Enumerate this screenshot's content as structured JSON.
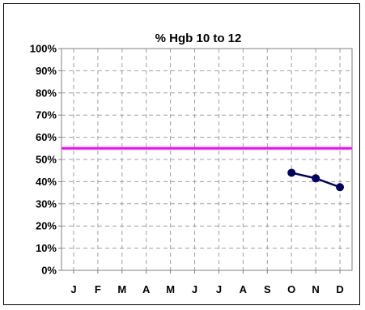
{
  "chart_data": {
    "type": "line",
    "title": "% Hgb 10 to 12",
    "categories": [
      "J",
      "F",
      "M",
      "A",
      "M",
      "J",
      "J",
      "A",
      "S",
      "O",
      "N",
      "D"
    ],
    "y_ticks": [
      "0%",
      "10%",
      "20%",
      "30%",
      "40%",
      "50%",
      "60%",
      "70%",
      "80%",
      "90%",
      "100%"
    ],
    "ylim": [
      0,
      100
    ],
    "grid": true,
    "series": [
      {
        "values": [
          null,
          null,
          null,
          null,
          null,
          null,
          null,
          null,
          null,
          44,
          41.5,
          37.5
        ],
        "color": "#000066"
      }
    ],
    "reference_line": {
      "value": 55,
      "color": "#ff00ff"
    }
  }
}
